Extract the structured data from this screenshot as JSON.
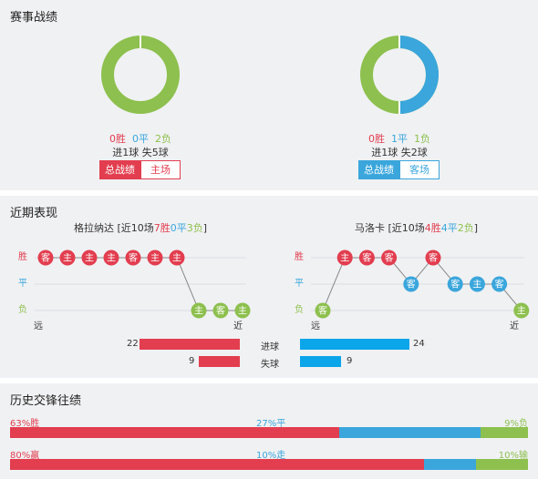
{
  "colors": {
    "win": "#e23e4f",
    "draw": "#3aa6dc",
    "loss": "#8dc04e",
    "bar_blue": "#0ba5ea"
  },
  "record": {
    "title": "赛事战绩",
    "left": {
      "donut": {
        "win": 0,
        "draw": 0,
        "loss": 2
      },
      "win_text": "0胜",
      "draw_text": "0平",
      "loss_text": "2负",
      "goals_text": "进1球  失5球",
      "tab_active": "总战绩",
      "tab_other": "主场"
    },
    "right": {
      "donut": {
        "win": 0,
        "draw": 1,
        "loss": 1
      },
      "win_text": "0胜",
      "draw_text": "1平",
      "loss_text": "1负",
      "goals_text": "进1球  失2球",
      "tab_active": "总战绩",
      "tab_other": "客场"
    }
  },
  "recent": {
    "title": "近期表现",
    "row_labels": {
      "win": "胜",
      "draw": "平",
      "loss": "负"
    },
    "far_label": "远",
    "near_label": "近",
    "left": {
      "team": "格拉纳达",
      "summary_prefix": " [近10场",
      "wins": "7胜",
      "draws": "0平",
      "losses": "3负",
      "summary_suffix": "]",
      "matches": [
        {
          "venue": "客",
          "result": "win"
        },
        {
          "venue": "主",
          "result": "win"
        },
        {
          "venue": "主",
          "result": "win"
        },
        {
          "venue": "主",
          "result": "win"
        },
        {
          "venue": "客",
          "result": "win"
        },
        {
          "venue": "主",
          "result": "win"
        },
        {
          "venue": "主",
          "result": "win"
        },
        {
          "venue": "主",
          "result": "loss"
        },
        {
          "venue": "客",
          "result": "loss"
        },
        {
          "venue": "主",
          "result": "loss"
        }
      ]
    },
    "right": {
      "team": "马洛卡",
      "summary_prefix": " [近10场",
      "wins": "4胜",
      "draws": "4平",
      "losses": "2负",
      "summary_suffix": "]",
      "matches": [
        {
          "venue": "客",
          "result": "loss"
        },
        {
          "venue": "主",
          "result": "win"
        },
        {
          "venue": "客",
          "result": "win"
        },
        {
          "venue": "客",
          "result": "win"
        },
        {
          "venue": "客",
          "result": "draw"
        },
        {
          "venue": "客",
          "result": "win"
        },
        {
          "venue": "客",
          "result": "draw"
        },
        {
          "venue": "主",
          "result": "draw"
        },
        {
          "venue": "客",
          "result": "draw"
        },
        {
          "venue": "主",
          "result": "loss"
        }
      ]
    },
    "goals": {
      "scored_label": "进球",
      "conceded_label": "失球",
      "left_scored": 22,
      "left_conceded": 9,
      "right_scored": 24,
      "right_conceded": 9
    }
  },
  "history": {
    "title": "历史交锋往绩",
    "row1": {
      "left": "63%胜",
      "mid": "27%平",
      "right": "9%负",
      "values": [
        63,
        27,
        9
      ]
    },
    "row2": {
      "left": "80%赢",
      "mid": "10%走",
      "right": "10%输",
      "values": [
        80,
        10,
        10
      ]
    }
  }
}
